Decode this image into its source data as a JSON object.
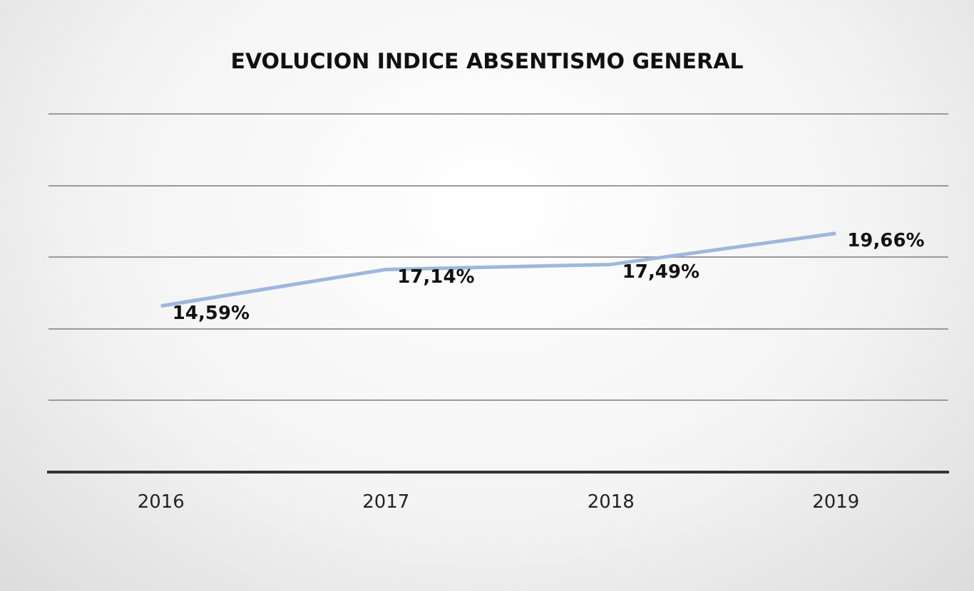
{
  "chart_data": {
    "type": "line",
    "title": "EVOLUCION INDICE ABSENTISMO GENERAL",
    "categories": [
      "2016",
      "2017",
      "2018",
      "2019"
    ],
    "series": [
      {
        "color": "#9db8dc",
        "values": [
          14.59,
          17.14,
          17.49,
          19.66
        ],
        "value_labels": [
          "14,59%",
          "17,14%",
          "17,49%",
          "19,66%"
        ]
      }
    ],
    "ylim": [
      3,
      28
    ],
    "yticks": [
      {
        "value": 3,
        "label": null
      },
      {
        "value": 8,
        "label": null
      },
      {
        "value": 13,
        "label": null
      },
      {
        "value": 18,
        "label": null
      },
      {
        "value": 23,
        "label": null
      },
      {
        "value": 28,
        "label": null
      }
    ],
    "tick_labels": "x",
    "grid": "y",
    "legend": false,
    "marker": "none"
  }
}
